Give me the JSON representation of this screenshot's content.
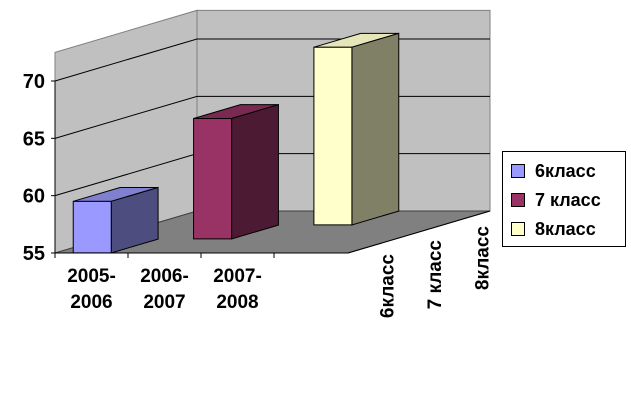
{
  "chart_data": {
    "type": "bar",
    "title": "",
    "xlabel": "",
    "ylabel": "",
    "ylim": [
      55,
      70
    ],
    "yticks": [
      55,
      60,
      65,
      70
    ],
    "categories": [
      "2005-\n2006",
      "2006-\n2007",
      "2007-\n2008"
    ],
    "depth_labels": [
      "6класс",
      "7 класс",
      "8класс"
    ],
    "series": [
      {
        "name": "6класс",
        "color": "#9999FF",
        "side": "#4D4D80",
        "top": "#8080D0",
        "values": [
          59.5,
          null,
          null
        ]
      },
      {
        "name": "7 класс",
        "color": "#993366",
        "side": "#4D1A33",
        "top": "#7A2952",
        "values": [
          null,
          65.5,
          null
        ]
      },
      {
        "name": "8класс",
        "color": "#FFFFCC",
        "side": "#808066",
        "top": "#E6E6B8",
        "values": [
          null,
          null,
          70.5
        ]
      }
    ],
    "grid": true,
    "legend_position": "right"
  }
}
